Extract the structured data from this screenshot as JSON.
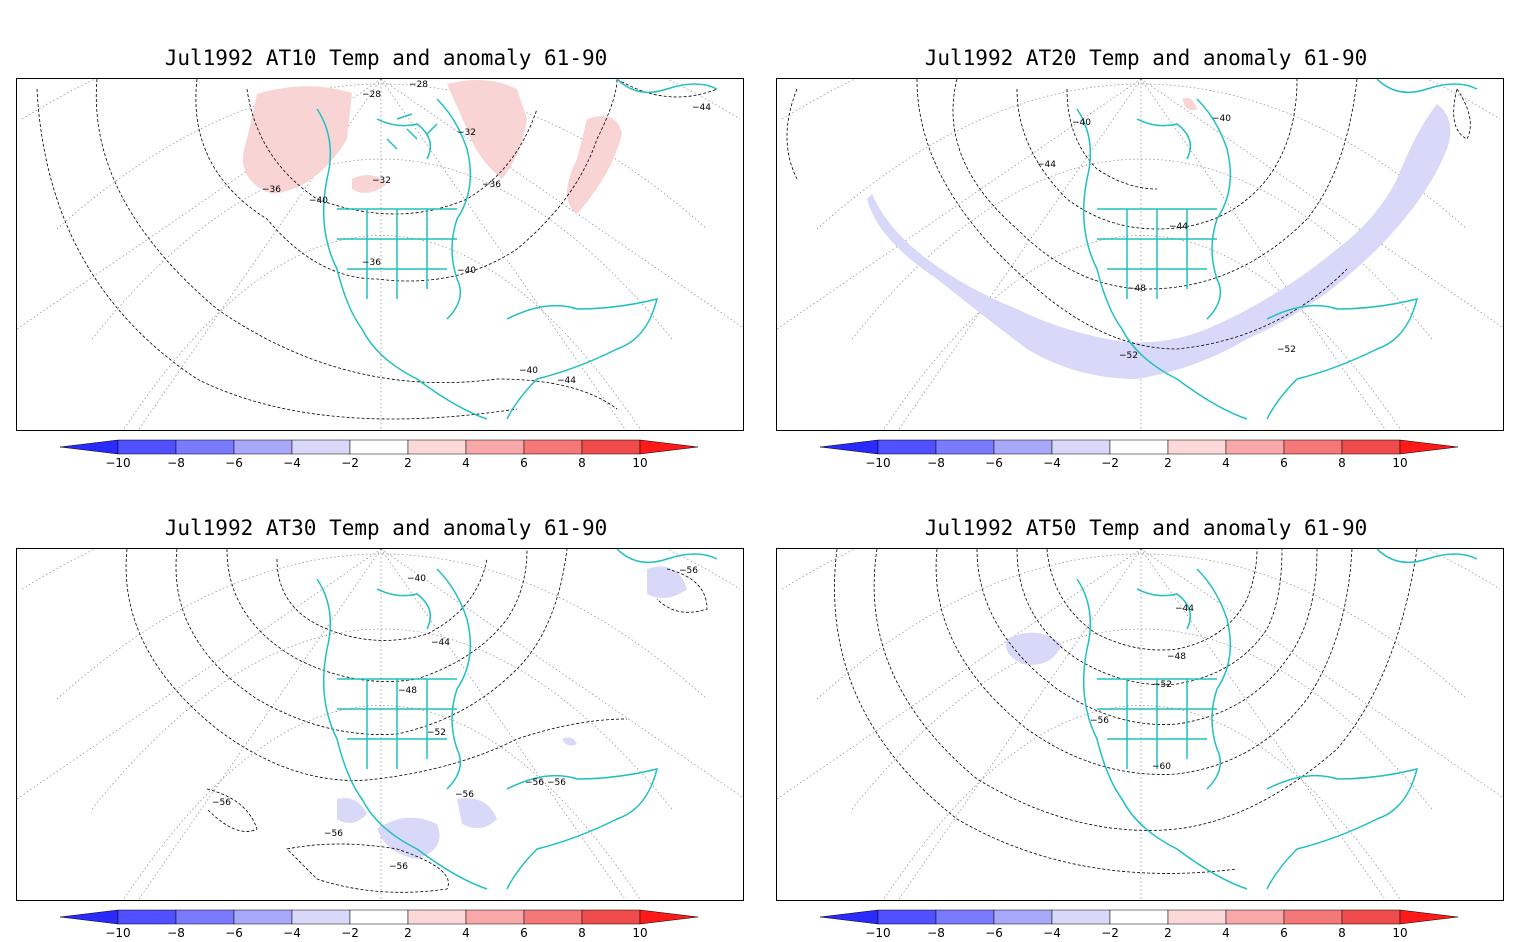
{
  "colorbar": {
    "levels": [
      "-10",
      "-8",
      "-6",
      "-4",
      "-2",
      "2",
      "4",
      "6",
      "8",
      "10"
    ],
    "colors": [
      "#2a2aff",
      "#5050ff",
      "#7a7aff",
      "#a8a8f8",
      "#d8d8f8",
      "#ffffff",
      "#fcd8d8",
      "#f8a8a8",
      "#f57878",
      "#f04c4c",
      "#ff1a1a"
    ]
  },
  "map_colors": {
    "coast": "#20c0c0",
    "contour": "#000000",
    "grid": "#888888",
    "warm_anomaly": "#f8d4d4",
    "cool_anomaly": "#d8d8f8"
  },
  "panels": [
    {
      "id": "at10",
      "title": "Jul1992 AT10 Temp and anomaly 61-90",
      "contour_labels": [
        "-28",
        "-28",
        "-32",
        "-32",
        "-36",
        "-36",
        "-40",
        "-36",
        "-40",
        "-44",
        "-40",
        "-44"
      ]
    },
    {
      "id": "at20",
      "title": "Jul1992 AT20 Temp and anomaly 61-90",
      "contour_labels": [
        "-40",
        "-40",
        "-44",
        "-44",
        "-48",
        "-52",
        "-52"
      ]
    },
    {
      "id": "at30",
      "title": "Jul1992 AT30 Temp and anomaly 61-90",
      "contour_labels": [
        "-40",
        "-56",
        "-44",
        "-48",
        "-52",
        "-56",
        "-56",
        "-56",
        "-56",
        "-56",
        "-56"
      ]
    },
    {
      "id": "at50",
      "title": "Jul1992 AT50 Temp and anomaly 61-90",
      "contour_labels": [
        "-44",
        "-48",
        "-52",
        "-56",
        "-60"
      ]
    }
  ]
}
